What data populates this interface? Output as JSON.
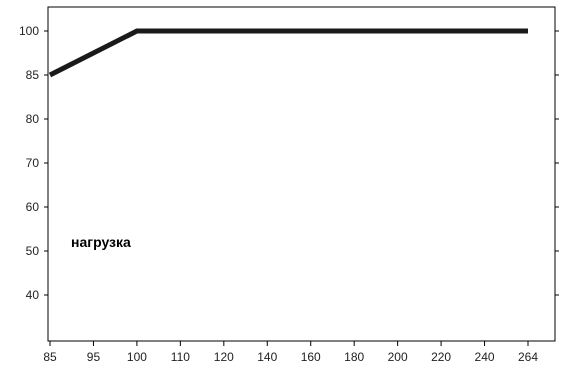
{
  "chart_data": {
    "type": "line",
    "title": "",
    "xlabel": "",
    "ylabel": "",
    "x_ticks": [
      "85",
      "95",
      "100",
      "110",
      "120",
      "140",
      "160",
      "180",
      "200",
      "220",
      "240",
      "264"
    ],
    "y_ticks": [
      100,
      85,
      80,
      70,
      60,
      50,
      40
    ],
    "series": [
      {
        "x": [
          "85",
          "100",
          "264"
        ],
        "y": [
          85,
          100,
          100
        ],
        "color": "#1a1a1a"
      }
    ],
    "annotation": "нагрузка",
    "grid": false,
    "line_color": "#1a1a1a",
    "axis_color": "#000000"
  }
}
